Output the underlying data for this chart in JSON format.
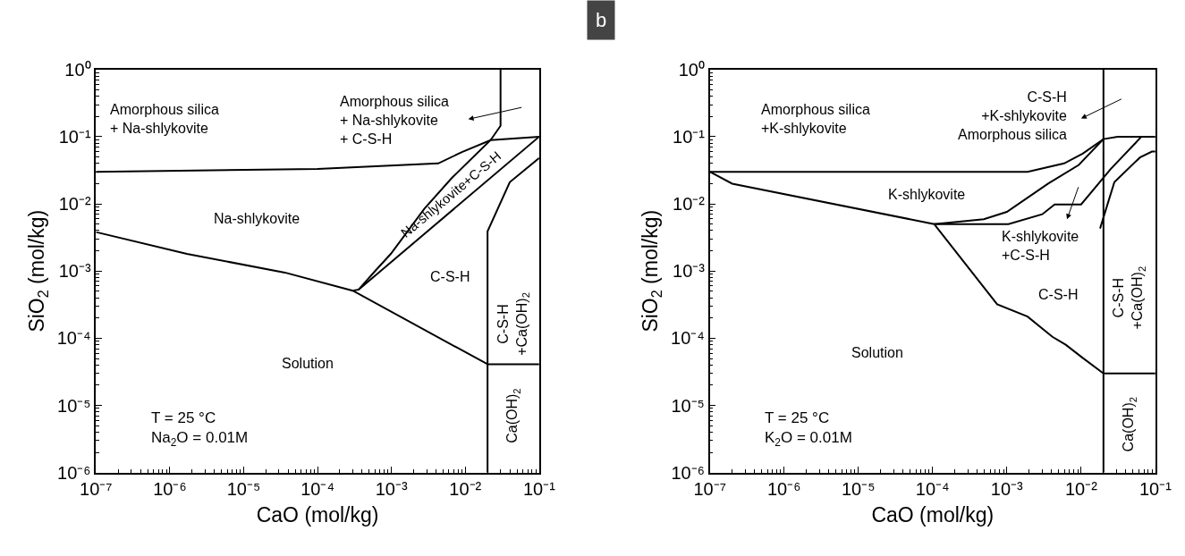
{
  "chart_data": [
    {
      "type": "line",
      "log": "xy",
      "xlabel": "CaO (mol/kg)",
      "ylabel": "SiO$_{2}$ (mol/kg)",
      "xlim": [
        1e-07,
        0.1
      ],
      "ylim": [
        1e-06,
        1
      ],
      "xticks": [
        {
          "value": 1e-07,
          "label": "10⁻⁷"
        },
        {
          "value": 1e-06,
          "label": "10⁻⁶"
        },
        {
          "value": 1e-05,
          "label": "10⁻⁵"
        },
        {
          "value": 0.0001,
          "label": "10⁻⁴"
        },
        {
          "value": 0.001,
          "label": "10⁻³"
        },
        {
          "value": 0.01,
          "label": "10⁻²"
        },
        {
          "value": 0.1,
          "label": "10⁻¹"
        }
      ],
      "yticks": [
        {
          "value": 1e-06,
          "label": "10⁻⁶"
        },
        {
          "value": 1e-05,
          "label": "10⁻⁵"
        },
        {
          "value": 0.0001,
          "label": "10⁻⁴"
        },
        {
          "value": 0.001,
          "label": "10⁻³"
        },
        {
          "value": 0.01,
          "label": "10⁻²"
        },
        {
          "value": 0.1,
          "label": "10⁻¹"
        },
        {
          "value": 1,
          "label": "10⁰"
        }
      ],
      "series": [
        {
          "color": "#000000",
          "x": [
            1e-07,
            0.0001,
            0.0043,
            0.009,
            0.022,
            0.1
          ],
          "values": [
            0.03,
            0.033,
            0.04,
            0.059,
            0.089,
            0.1
          ]
        },
        {
          "color": "#000000",
          "x": [
            1e-07,
            1.7e-06,
            3.6e-05,
            0.0003,
            0.02
          ],
          "values": [
            0.0038,
            0.0018,
            0.00095,
            0.00051,
            4.1e-05
          ]
        },
        {
          "color": "#000000",
          "x": [
            0.0003,
            0.00036,
            0.0006,
            0.00098,
            0.0028,
            0.0065,
            0.022,
            0.03,
            0.03
          ],
          "values": [
            0.00051,
            0.00053,
            0.001,
            0.0018,
            0.0085,
            0.024,
            0.089,
            0.145,
            1
          ]
        },
        {
          "color": "#000000",
          "x": [
            0.00036,
            0.1
          ],
          "values": [
            0.00053,
            0.1
          ]
        },
        {
          "color": "#000000",
          "x": [
            0.1,
            0.04,
            0.02,
            0.02
          ],
          "values": [
            0.048,
            0.021,
            0.0039,
            1e-06
          ]
        },
        {
          "color": "#000000",
          "x": [
            0.02,
            0.1
          ],
          "values": [
            4.1e-05,
            4.1e-05
          ]
        }
      ],
      "annotations": [
        "Amorphous silica\n+ Na-shlykovite",
        "Amorphous silica\n+ Na-shlykovite\n+ C-S-H",
        "Na-shlykovite",
        "Na-shlykovite+C-S-H",
        "C-S-H",
        "C-S-H\n+Ca(OH)$_{2}$",
        "Solution",
        "Ca(OH)$_{2}$",
        "T = 25 °C\nNa$_{2}$O = 0.01M"
      ]
    },
    {
      "type": "line",
      "log": "xy",
      "xlabel": "CaO (mol/kg)",
      "ylabel": "SiO$_{2}$ (mol/kg)",
      "xlim": [
        1e-07,
        0.1
      ],
      "ylim": [
        1e-06,
        1
      ],
      "xticks": [
        {
          "value": 1e-07,
          "label": "10⁻⁷"
        },
        {
          "value": 1e-06,
          "label": "10⁻⁶"
        },
        {
          "value": 1e-05,
          "label": "10⁻⁵"
        },
        {
          "value": 0.0001,
          "label": "10⁻⁴"
        },
        {
          "value": 0.001,
          "label": "10⁻³"
        },
        {
          "value": 0.01,
          "label": "10⁻²"
        },
        {
          "value": 0.1,
          "label": "10⁻¹"
        }
      ],
      "yticks": [
        {
          "value": 1e-06,
          "label": "10⁻⁶"
        },
        {
          "value": 1e-05,
          "label": "10⁻⁵"
        },
        {
          "value": 0.0001,
          "label": "10⁻⁴"
        },
        {
          "value": 0.001,
          "label": "10⁻³"
        },
        {
          "value": 0.01,
          "label": "10⁻²"
        },
        {
          "value": 0.1,
          "label": "10⁻¹"
        },
        {
          "value": 1,
          "label": "10⁰"
        }
      ],
      "series": [
        {
          "color": "#000000",
          "x": [
            1e-07,
            0.0019,
            0.0059,
            0.0105,
            0.02,
            0.031,
            0.1
          ],
          "values": [
            0.03,
            0.03,
            0.04,
            0.056,
            0.092,
            0.1,
            0.1
          ]
        },
        {
          "color": "#000000",
          "x": [
            0.02,
            0.02
          ],
          "values": [
            1,
            1e-06
          ]
        },
        {
          "color": "#000000",
          "x": [
            1e-07,
            2e-07,
            0.000105,
            0.00074,
            0.0019,
            0.0041,
            0.0062,
            0.0105,
            0.02
          ],
          "values": [
            0.03,
            0.02,
            0.005,
            0.00032,
            0.00021,
            0.000105,
            8e-05,
            5.1e-05,
            3e-05
          ]
        },
        {
          "color": "#000000",
          "x": [
            0.000105,
            0.00049,
            0.001,
            0.0036,
            0.0093,
            0.02
          ],
          "values": [
            0.005,
            0.0059,
            0.0076,
            0.02,
            0.038,
            0.092
          ]
        },
        {
          "color": "#000000",
          "x": [
            0.000105,
            0.00105,
            0.003,
            0.0044,
            0.01,
            0.025,
            0.065
          ],
          "values": [
            0.005,
            0.005,
            0.007,
            0.0098,
            0.0098,
            0.033,
            0.1
          ]
        },
        {
          "color": "#000000",
          "x": [
            0.018,
            0.028,
            0.062,
            0.09,
            0.1
          ],
          "values": [
            0.0043,
            0.021,
            0.049,
            0.06,
            0.06
          ]
        },
        {
          "color": "#000000",
          "x": [
            0.02,
            0.1
          ],
          "values": [
            3e-05,
            3e-05
          ]
        }
      ],
      "annotations": [
        "Amorphous silica\n+K-shlykovite",
        "C-S-H\n+K-shlykovite\nAmorphous silica",
        "K-shlykovite",
        "K-shlykovite\n+C-S-H",
        "C-S-H",
        "C-S-H\n+Ca(OH)$_{2}$",
        "Solution",
        "Ca(OH)$_{2}$",
        "T = 25 °C\nK$_{2}$O = 0.01M",
        "b"
      ]
    }
  ]
}
